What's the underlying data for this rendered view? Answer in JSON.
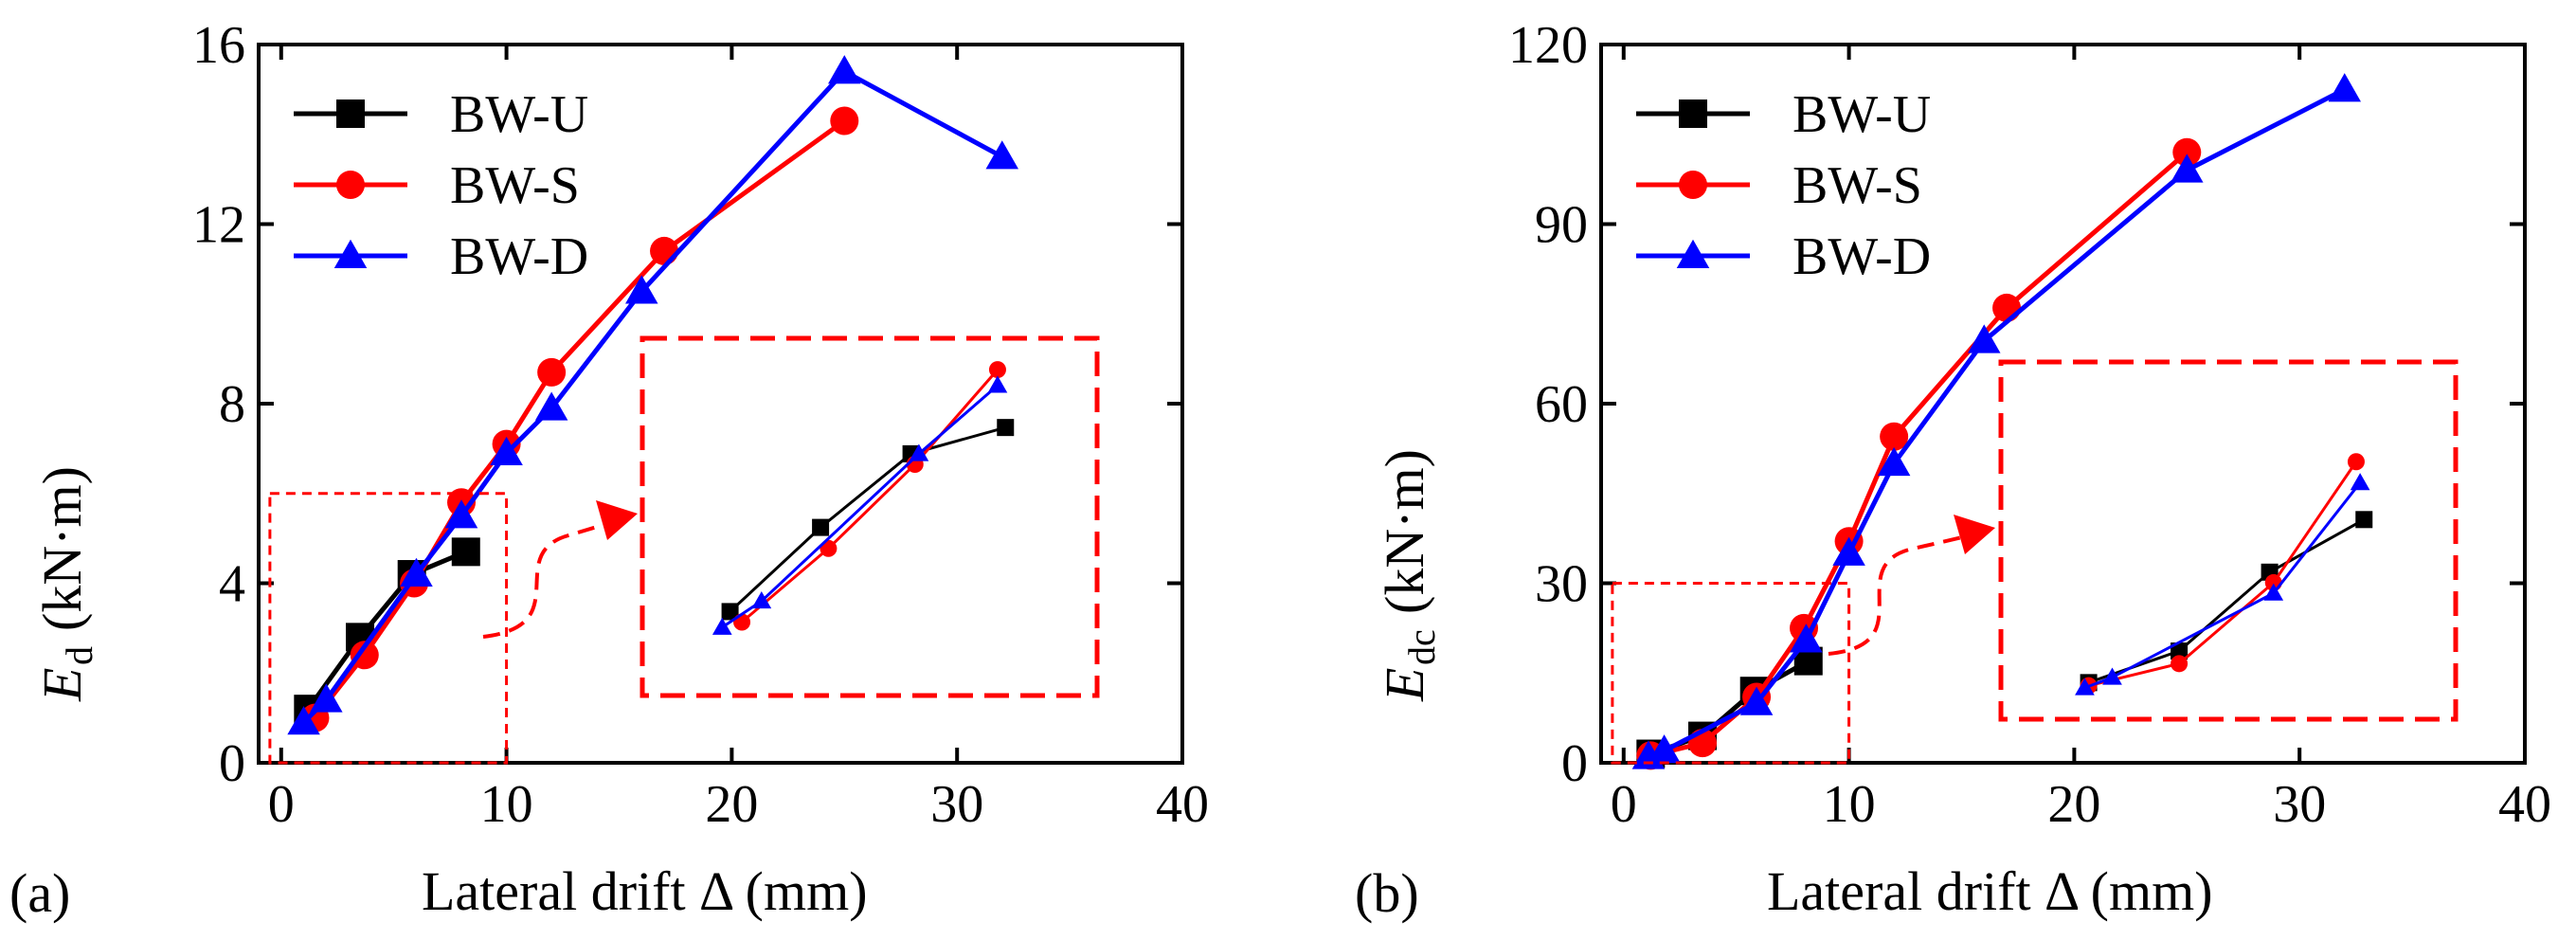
{
  "figure": {
    "series_colors": {
      "BW-U": "#000000",
      "BW-S": "#ff0000",
      "BW-D": "#0000ff"
    },
    "zoom_color": "#ff0000"
  },
  "chart_data": [
    {
      "type": "line",
      "panel_label": "(a)",
      "ylabel_main": "E",
      "ylabel_sub": "d",
      "ylabel_unit": "(kN·m)",
      "xlabel": "Lateral drift Δ (mm)",
      "xlim": [
        -1,
        40
      ],
      "ylim": [
        0,
        16
      ],
      "xticks": [
        0,
        10,
        20,
        30,
        40
      ],
      "yticks": [
        0,
        4,
        8,
        12,
        16
      ],
      "tick_labels": {
        "x": [
          "0",
          "10",
          "20",
          "30",
          "40"
        ],
        "y": [
          "0",
          "4",
          "8",
          "12",
          "16"
        ]
      },
      "legend_position": "top-left",
      "series": [
        {
          "name": "BW-U",
          "color": "#000000",
          "marker": "square",
          "x": [
            1.2,
            3.5,
            5.8,
            8.2
          ],
          "y": [
            1.2,
            2.8,
            4.2,
            4.7
          ]
        },
        {
          "name": "BW-S",
          "color": "#ff0000",
          "marker": "circle",
          "x": [
            1.5,
            3.7,
            5.9,
            8.0,
            10.0,
            12.0,
            17.0,
            25.0
          ],
          "y": [
            1.0,
            2.4,
            4.0,
            5.8,
            7.1,
            8.7,
            11.4,
            14.3
          ]
        },
        {
          "name": "BW-D",
          "color": "#0000ff",
          "marker": "triangle",
          "x": [
            1.0,
            2.0,
            6.0,
            8.0,
            10.0,
            12.0,
            16.0,
            25.0,
            32.0
          ],
          "y": [
            0.9,
            1.4,
            4.2,
            5.5,
            6.9,
            7.9,
            10.5,
            15.4,
            13.5
          ]
        }
      ],
      "inset": {
        "description": "zoom of region x 0-10, y 0-6",
        "source_region": {
          "x": [
            -0.5,
            10
          ],
          "y": [
            0,
            6
          ]
        },
        "series": [
          {
            "name": "BW-U",
            "x": [
              1.2,
              3.5,
              5.8,
              8.2
            ],
            "y": [
              1.2,
              2.8,
              4.2,
              4.7
            ]
          },
          {
            "name": "BW-S",
            "x": [
              1.5,
              3.7,
              5.9,
              8.0
            ],
            "y": [
              1.0,
              2.4,
              4.0,
              5.8
            ]
          },
          {
            "name": "BW-D",
            "x": [
              1.0,
              2.0,
              6.0,
              8.0
            ],
            "y": [
              0.9,
              1.4,
              4.2,
              5.5
            ]
          }
        ]
      }
    },
    {
      "type": "line",
      "panel_label": "(b)",
      "ylabel_main": "E",
      "ylabel_sub": "dc",
      "ylabel_unit": "(kN·m)",
      "xlabel": "Lateral drift Δ (mm)",
      "xlim": [
        -1,
        40
      ],
      "ylim": [
        0,
        120
      ],
      "xticks": [
        0,
        10,
        20,
        30,
        40
      ],
      "yticks": [
        0,
        30,
        60,
        90,
        120
      ],
      "tick_labels": {
        "x": [
          "0",
          "10",
          "20",
          "30",
          "40"
        ],
        "y": [
          "0",
          "30",
          "60",
          "90",
          "120"
        ]
      },
      "legend_position": "top-left",
      "series": [
        {
          "name": "BW-U",
          "color": "#000000",
          "marker": "square",
          "x": [
            1.2,
            3.5,
            5.8,
            8.2
          ],
          "y": [
            1.5,
            4.5,
            12,
            17
          ]
        },
        {
          "name": "BW-S",
          "color": "#ff0000",
          "marker": "circle",
          "x": [
            1.2,
            3.5,
            5.9,
            8.0,
            10.0,
            12.0,
            17.0,
            25.0
          ],
          "y": [
            1.2,
            3.3,
            11,
            22.5,
            37,
            54.5,
            76,
            102
          ]
        },
        {
          "name": "BW-D",
          "color": "#0000ff",
          "marker": "triangle",
          "x": [
            1.1,
            1.8,
            5.9,
            8.1,
            10.0,
            12.0,
            16.0,
            25.0,
            32.0
          ],
          "y": [
            1.0,
            2.0,
            10,
            20.5,
            35,
            50,
            70.5,
            99,
            112.5
          ]
        }
      ],
      "inset": {
        "description": "zoom of region x 0-10, y 0-30",
        "source_region": {
          "x": [
            -0.5,
            10
          ],
          "y": [
            0,
            30
          ]
        },
        "series": [
          {
            "name": "BW-U",
            "x": [
              1.2,
              3.5,
              5.8,
              8.2
            ],
            "y": [
              1.5,
              4.5,
              12,
              17
            ]
          },
          {
            "name": "BW-S",
            "x": [
              1.2,
              3.5,
              5.9,
              8.0
            ],
            "y": [
              1.2,
              3.3,
              11,
              22.5
            ]
          },
          {
            "name": "BW-D",
            "x": [
              1.1,
              1.8,
              5.9,
              8.1
            ],
            "y": [
              1.0,
              2.0,
              10,
              20.5
            ]
          }
        ]
      }
    }
  ]
}
